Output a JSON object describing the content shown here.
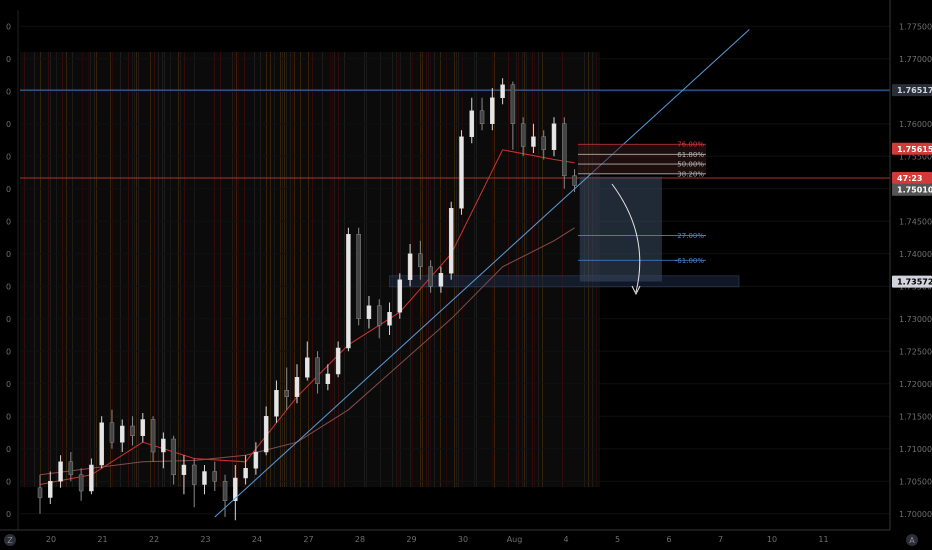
{
  "chart_data": {
    "type": "candlestick",
    "x_ticks": [
      "20",
      "21",
      "22",
      "23",
      "24",
      "27",
      "28",
      "29",
      "30",
      "Aug",
      "4",
      "5",
      "6",
      "7",
      "10",
      "11"
    ],
    "y_ticks": [
      "1.77500",
      "1.77000",
      "1.76500",
      "1.76000",
      "1.75500",
      "1.75000",
      "1.74500",
      "1.74000",
      "1.73500",
      "1.73000",
      "1.72500",
      "1.72000",
      "1.71500",
      "1.71000",
      "1.70500",
      "1.70000"
    ],
    "ylim": [
      1.6975,
      1.7775
    ],
    "price_tags": [
      {
        "label": "1.76517",
        "value": 1.76517,
        "bg": "#2a2e39",
        "fg": "#d1d4dc"
      },
      {
        "label": "1.75615",
        "value": 1.75615,
        "bg": "#d23a3a",
        "fg": "#ffffff"
      },
      {
        "label": "47:23",
        "value": 1.75165,
        "bg": "#d23a3a",
        "fg": "#ffffff"
      },
      {
        "label": "1.75010",
        "value": 1.74985,
        "bg": "#555555",
        "fg": "#ffffff"
      },
      {
        "label": "1.73572",
        "value": 1.73572,
        "bg": "#d1d4dc",
        "fg": "#000000"
      }
    ],
    "fib_levels": [
      {
        "label": "76.00%",
        "value": 1.75685,
        "color": "#d23a3a"
      },
      {
        "label": "61.80%",
        "value": 1.7553,
        "color": "#b0b0b0"
      },
      {
        "label": "50.00%",
        "value": 1.7538,
        "color": "#b0b0b0"
      },
      {
        "label": "38.20%",
        "value": 1.7523,
        "color": "#b0b0b0"
      },
      {
        "label": "-27.00%",
        "value": 1.7428,
        "color": "#4a82d8"
      },
      {
        "label": "-61.00%",
        "value": 1.739,
        "color": "#4a82d8"
      }
    ],
    "horizontal_lines": [
      {
        "value": 1.76517,
        "color": "#3c78c8"
      },
      {
        "value": 1.75165,
        "color": "#b03030"
      }
    ],
    "candles": [
      [
        0,
        1.704,
        1.7025,
        1.706,
        1.7
      ],
      [
        0.2,
        1.7025,
        1.705,
        1.7065,
        1.7015
      ],
      [
        0.4,
        1.705,
        1.708,
        1.709,
        1.704
      ],
      [
        0.6,
        1.708,
        1.706,
        1.7095,
        1.705
      ],
      [
        0.8,
        1.706,
        1.7035,
        1.707,
        1.702
      ],
      [
        1.0,
        1.7035,
        1.7075,
        1.7085,
        1.703
      ],
      [
        1.2,
        1.7075,
        1.714,
        1.715,
        1.707
      ],
      [
        1.4,
        1.714,
        1.711,
        1.716,
        1.71
      ],
      [
        1.6,
        1.711,
        1.7135,
        1.7145,
        1.7095
      ],
      [
        1.8,
        1.7135,
        1.712,
        1.715,
        1.7105
      ],
      [
        2.0,
        1.712,
        1.7145,
        1.7155,
        1.711
      ],
      [
        2.2,
        1.7145,
        1.7095,
        1.715,
        1.708
      ],
      [
        2.4,
        1.7095,
        1.7115,
        1.7125,
        1.707
      ],
      [
        2.6,
        1.7115,
        1.706,
        1.712,
        1.7045
      ],
      [
        2.8,
        1.706,
        1.7075,
        1.709,
        1.703
      ],
      [
        3.0,
        1.7075,
        1.7045,
        1.7085,
        1.701
      ],
      [
        3.2,
        1.7045,
        1.7065,
        1.7075,
        1.703
      ],
      [
        3.4,
        1.7065,
        1.705,
        1.708,
        1.7035
      ],
      [
        3.6,
        1.705,
        1.702,
        1.706,
        1.6995
      ],
      [
        3.8,
        1.702,
        1.7055,
        1.7075,
        1.699
      ],
      [
        4.0,
        1.7055,
        1.707,
        1.709,
        1.7045
      ],
      [
        4.2,
        1.707,
        1.7095,
        1.711,
        1.706
      ],
      [
        4.4,
        1.7095,
        1.715,
        1.7165,
        1.709
      ],
      [
        4.6,
        1.715,
        1.719,
        1.7205,
        1.714
      ],
      [
        4.8,
        1.719,
        1.718,
        1.7225,
        1.716
      ],
      [
        5.0,
        1.718,
        1.721,
        1.723,
        1.717
      ],
      [
        5.2,
        1.721,
        1.724,
        1.7265,
        1.7205
      ],
      [
        5.4,
        1.724,
        1.72,
        1.725,
        1.7185
      ],
      [
        5.6,
        1.72,
        1.7215,
        1.723,
        1.719
      ],
      [
        5.8,
        1.7215,
        1.7255,
        1.7265,
        1.721
      ],
      [
        6.0,
        1.7255,
        1.743,
        1.744,
        1.725
      ],
      [
        6.2,
        1.743,
        1.73,
        1.744,
        1.729
      ],
      [
        6.4,
        1.73,
        1.732,
        1.7335,
        1.7285
      ],
      [
        6.6,
        1.732,
        1.729,
        1.733,
        1.727
      ],
      [
        6.8,
        1.729,
        1.731,
        1.7325,
        1.7275
      ],
      [
        7.0,
        1.731,
        1.736,
        1.737,
        1.73
      ],
      [
        7.2,
        1.736,
        1.74,
        1.7415,
        1.735
      ],
      [
        7.4,
        1.74,
        1.738,
        1.742,
        1.736
      ],
      [
        7.6,
        1.738,
        1.735,
        1.739,
        1.734
      ],
      [
        7.8,
        1.735,
        1.737,
        1.738,
        1.734
      ],
      [
        8.0,
        1.737,
        1.747,
        1.748,
        1.736
      ],
      [
        8.2,
        1.747,
        1.758,
        1.759,
        1.746
      ],
      [
        8.4,
        1.758,
        1.762,
        1.764,
        1.757
      ],
      [
        8.6,
        1.762,
        1.76,
        1.764,
        1.759
      ],
      [
        8.8,
        1.76,
        1.764,
        1.7655,
        1.759
      ],
      [
        9.0,
        1.764,
        1.766,
        1.767,
        1.763
      ],
      [
        9.2,
        1.766,
        1.76,
        1.7665,
        1.756
      ],
      [
        9.4,
        1.76,
        1.7565,
        1.761,
        1.755
      ],
      [
        9.6,
        1.7565,
        1.758,
        1.76,
        1.7555
      ],
      [
        9.8,
        1.758,
        1.756,
        1.759,
        1.7545
      ],
      [
        10.0,
        1.756,
        1.76,
        1.761,
        1.755
      ],
      [
        10.2,
        1.76,
        1.752,
        1.761,
        1.75
      ],
      [
        10.4,
        1.752,
        1.7505,
        1.753,
        1.7495
      ]
    ],
    "ma_fast": [
      [
        0,
        1.7045
      ],
      [
        1,
        1.706
      ],
      [
        2,
        1.711
      ],
      [
        3,
        1.7085
      ],
      [
        4,
        1.708
      ],
      [
        5,
        1.718
      ],
      [
        6,
        1.726
      ],
      [
        7,
        1.731
      ],
      [
        8,
        1.74
      ],
      [
        9,
        1.756
      ],
      [
        10,
        1.7545
      ],
      [
        10.4,
        1.754
      ]
    ],
    "ma_slow": [
      [
        0,
        1.706
      ],
      [
        1,
        1.707
      ],
      [
        2,
        1.708
      ],
      [
        3,
        1.7082
      ],
      [
        4,
        1.709
      ],
      [
        5,
        1.711
      ],
      [
        6,
        1.716
      ],
      [
        7,
        1.723
      ],
      [
        8,
        1.73
      ],
      [
        9,
        1.738
      ],
      [
        10,
        1.742
      ],
      [
        10.4,
        1.744
      ]
    ],
    "trendline": [
      [
        3.4,
        1.6995
      ],
      [
        13.8,
        1.7745
      ]
    ],
    "supply_zone": {
      "x_from": 6.8,
      "x_to": 13.6,
      "y_from": 1.7349,
      "y_to": 1.7366
    },
    "target_box": {
      "x_from": 10.5,
      "x_to": 12.1,
      "y_from": 1.73572,
      "y_to": 1.75185
    }
  }
}
